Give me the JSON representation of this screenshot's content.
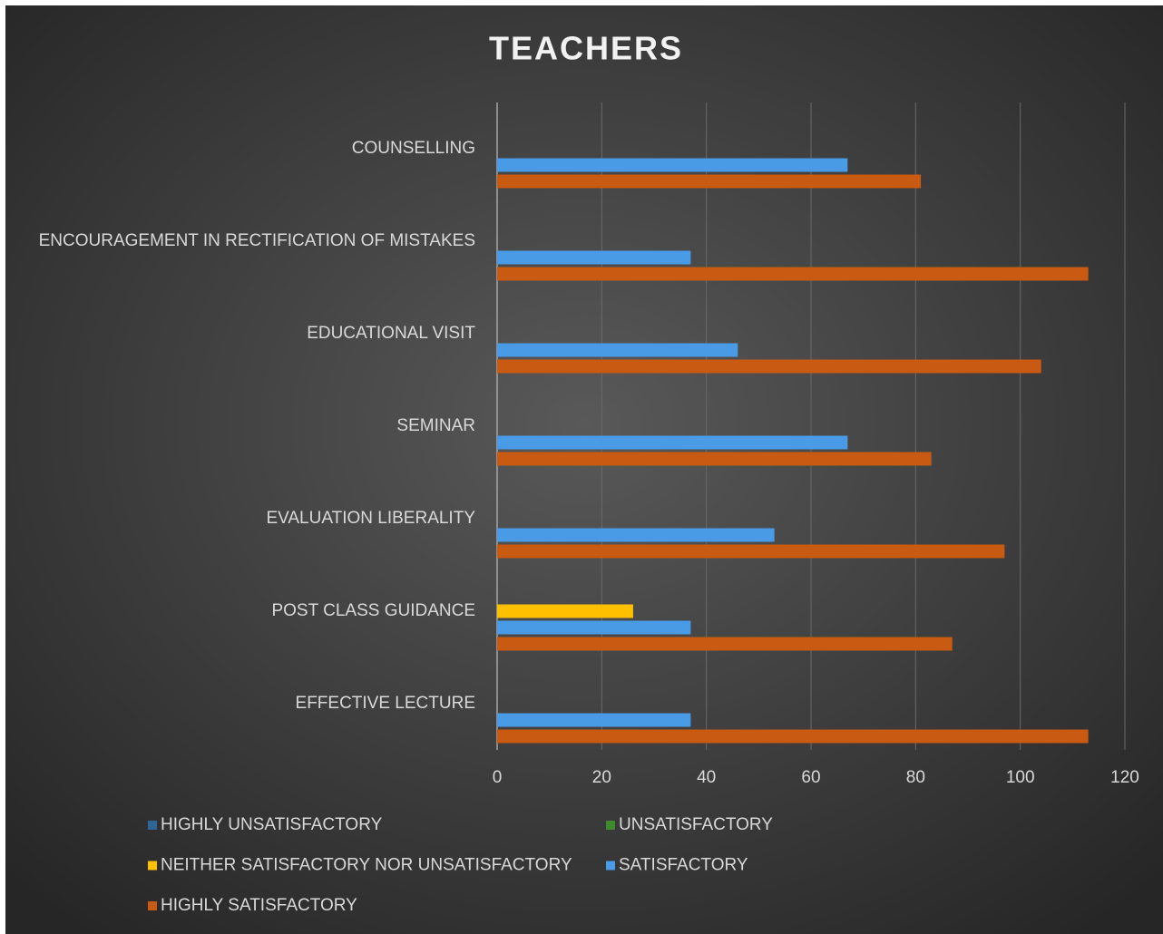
{
  "chart_data": {
    "type": "barh",
    "title": "TEACHERS",
    "categories": [
      "COUNSELLING",
      "ENCOURAGEMENT IN RECTIFICATION OF MISTAKES",
      "EDUCATIONAL VISIT",
      "SEMINAR",
      "EVALUATION LIBERALITY",
      "POST CLASS GUIDANCE",
      "EFFECTIVE LECTURE"
    ],
    "series": [
      {
        "name": "HIGHLY UNSATISFACTORY",
        "color": "#2f6496",
        "values": [
          0,
          0,
          0,
          0,
          0,
          0,
          0
        ]
      },
      {
        "name": "UNSATISFACTORY",
        "color": "#3f8a2e",
        "values": [
          0,
          0,
          0,
          0,
          0,
          0,
          0
        ]
      },
      {
        "name": "NEITHER SATISFACTORY NOR UNSATISFACTORY",
        "color": "#ffc000",
        "values": [
          0,
          0,
          0,
          0,
          0,
          26,
          0
        ]
      },
      {
        "name": "SATISFACTORY",
        "color": "#4a9be6",
        "values": [
          67,
          37,
          46,
          67,
          53,
          37,
          37
        ]
      },
      {
        "name": "HIGHLY SATISFACTORY",
        "color": "#c85a12",
        "values": [
          81,
          113,
          104,
          83,
          97,
          87,
          113
        ]
      }
    ],
    "xlim": [
      0,
      120
    ],
    "xticks": [
      0,
      20,
      40,
      60,
      80,
      100,
      120
    ],
    "grid": true,
    "legend": "bottom"
  }
}
